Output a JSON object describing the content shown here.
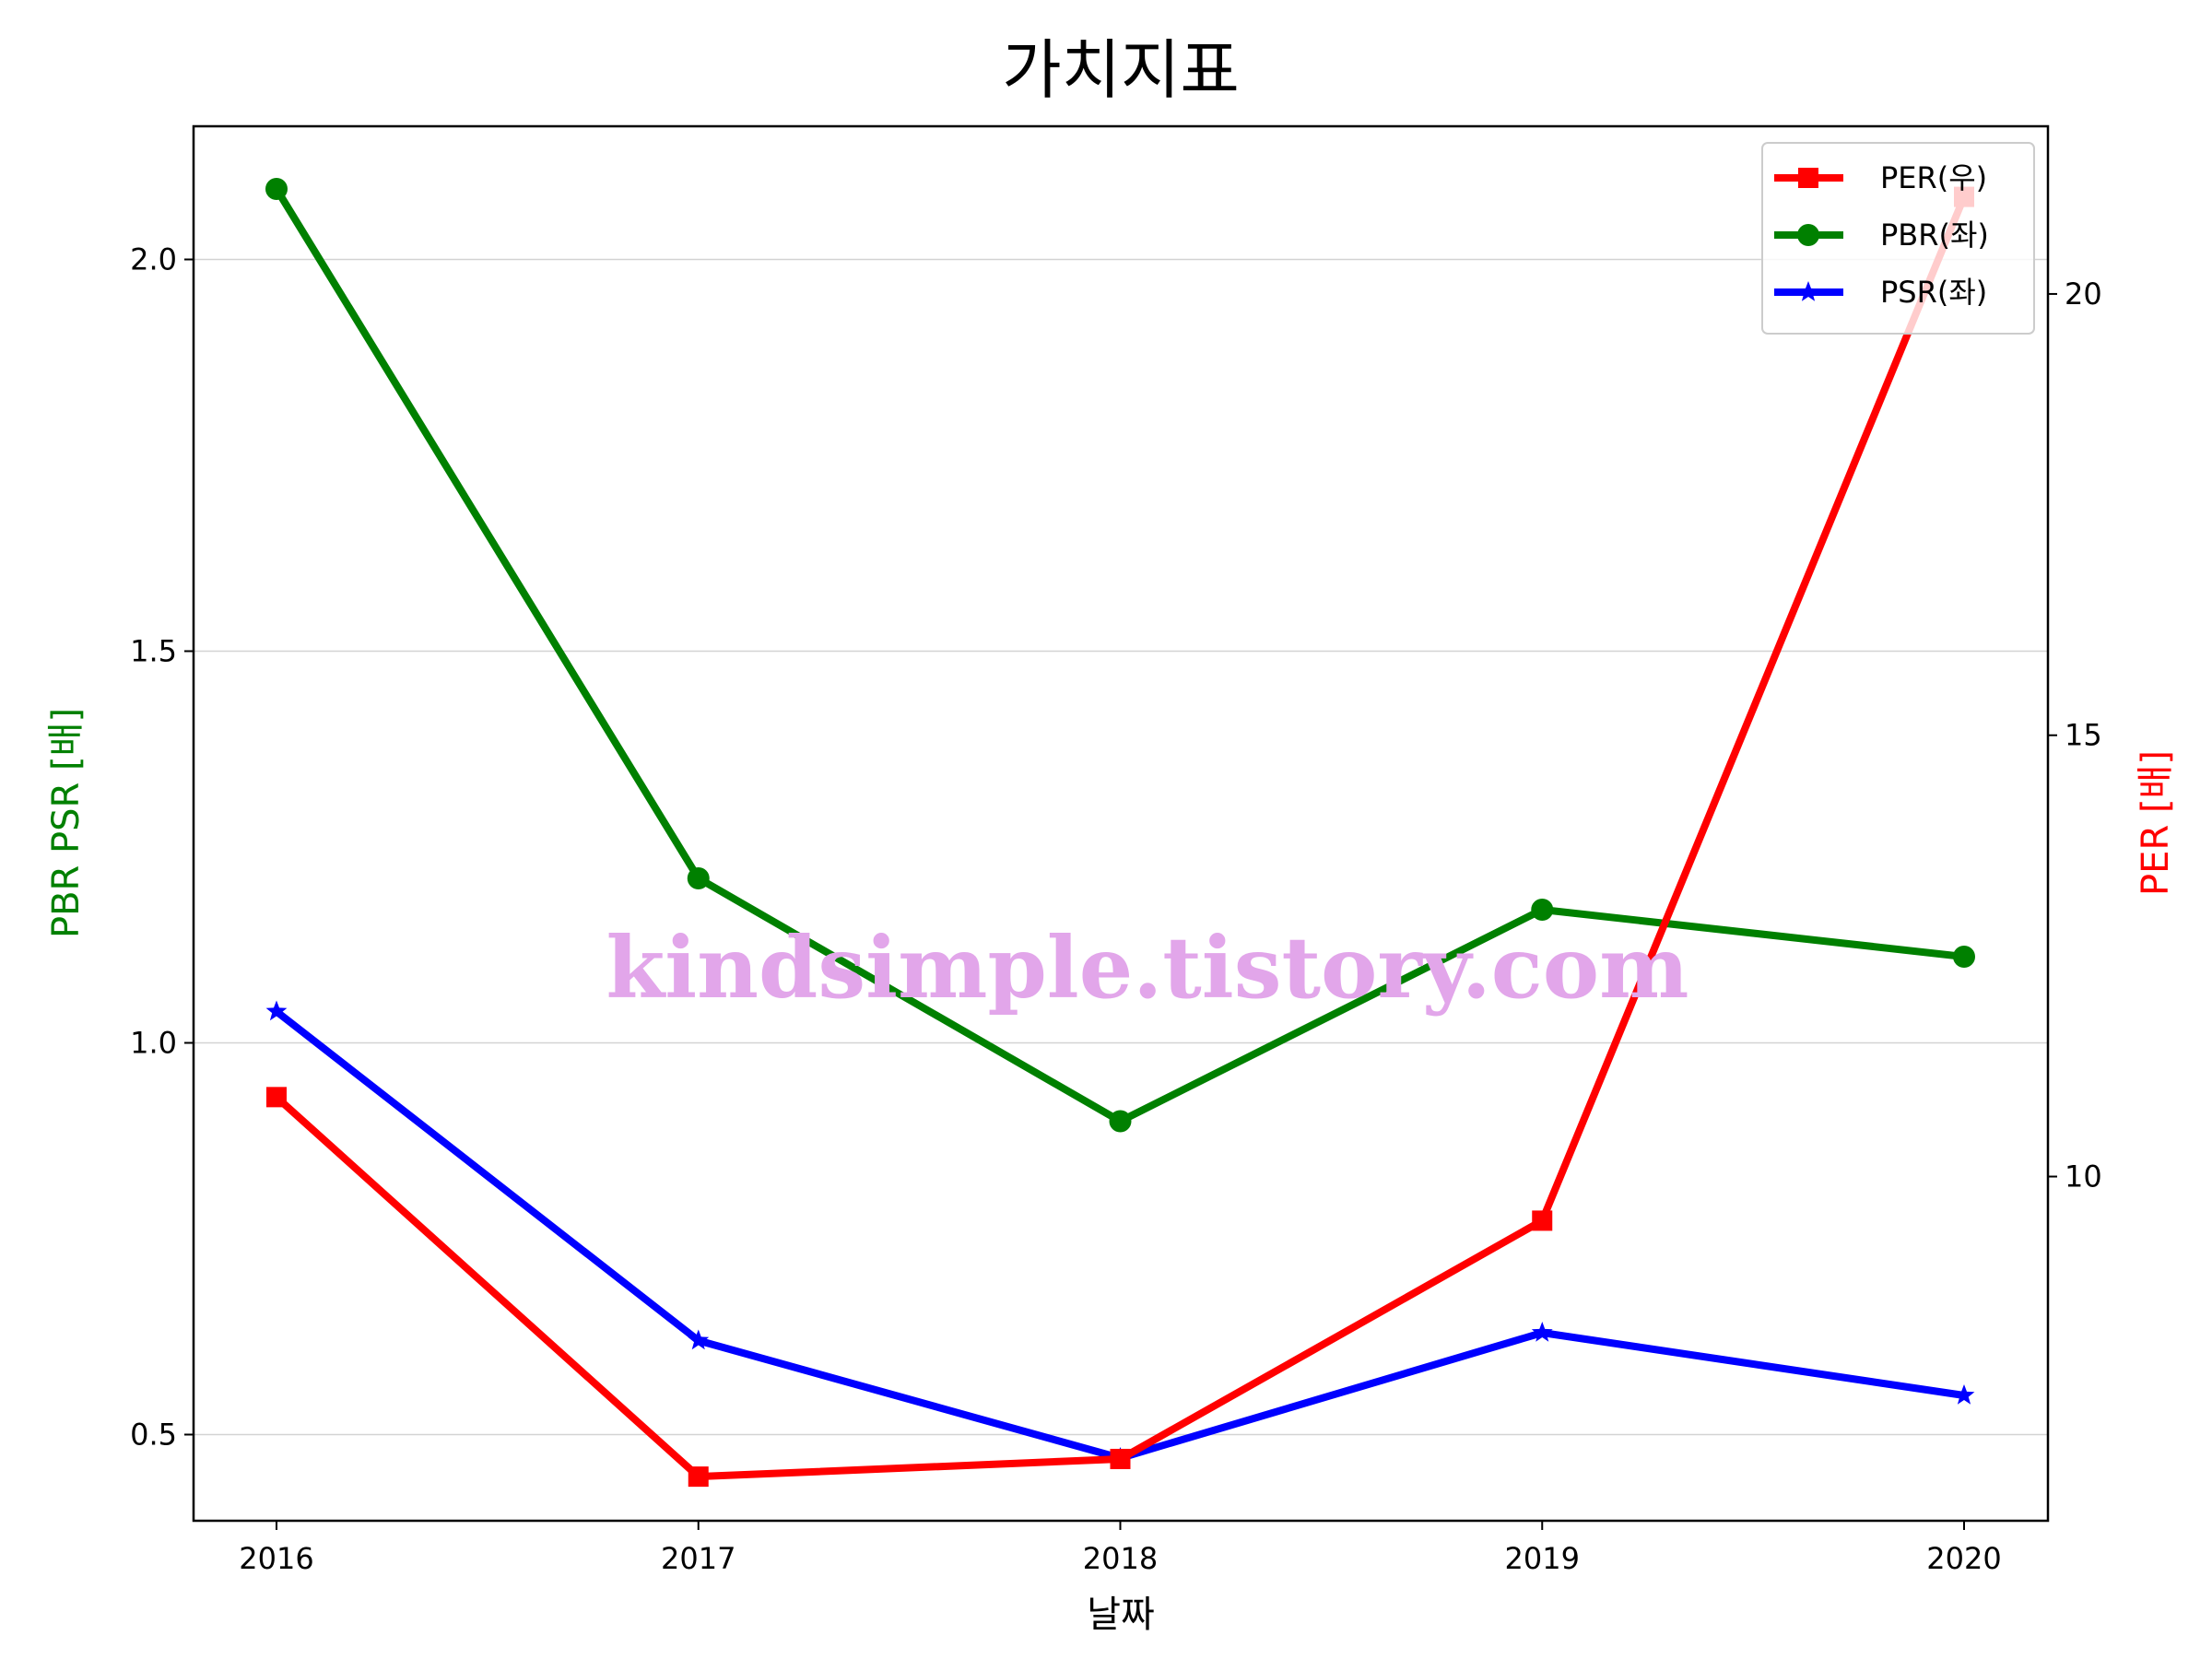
{
  "chart_data": {
    "type": "line",
    "title": "가치지표",
    "xlabel": "날짜",
    "ylabel_left": "PBR PSR [배]",
    "ylabel_right": "PER [배]",
    "categories": [
      "2016",
      "2017",
      "2018",
      "2019",
      "2020"
    ],
    "ylim_left": [
      0.39,
      2.17
    ],
    "ylim_right": [
      6.1,
      21.9
    ],
    "yticks_left": [
      "0.5",
      "1.0",
      "1.5",
      "2.0"
    ],
    "yticks_right": [
      "10",
      "15",
      "20"
    ],
    "grid": "horizontal, left axis",
    "legend_position": "top-right",
    "series": [
      {
        "name": "PER(우)",
        "axis": "right",
        "color": "#ff0000",
        "marker": "square",
        "values": [
          10.9,
          6.6,
          6.8,
          9.5,
          21.1
        ]
      },
      {
        "name": "PBR(좌)",
        "axis": "left",
        "color": "#008000",
        "marker": "circle",
        "values": [
          2.09,
          1.21,
          0.9,
          1.17,
          1.11
        ]
      },
      {
        "name": "PSR(좌)",
        "axis": "left",
        "color": "#0000ff",
        "marker": "star",
        "values": [
          1.04,
          0.62,
          0.47,
          0.63,
          0.55
        ]
      }
    ],
    "watermark": "kindsimple.tistory.com"
  }
}
